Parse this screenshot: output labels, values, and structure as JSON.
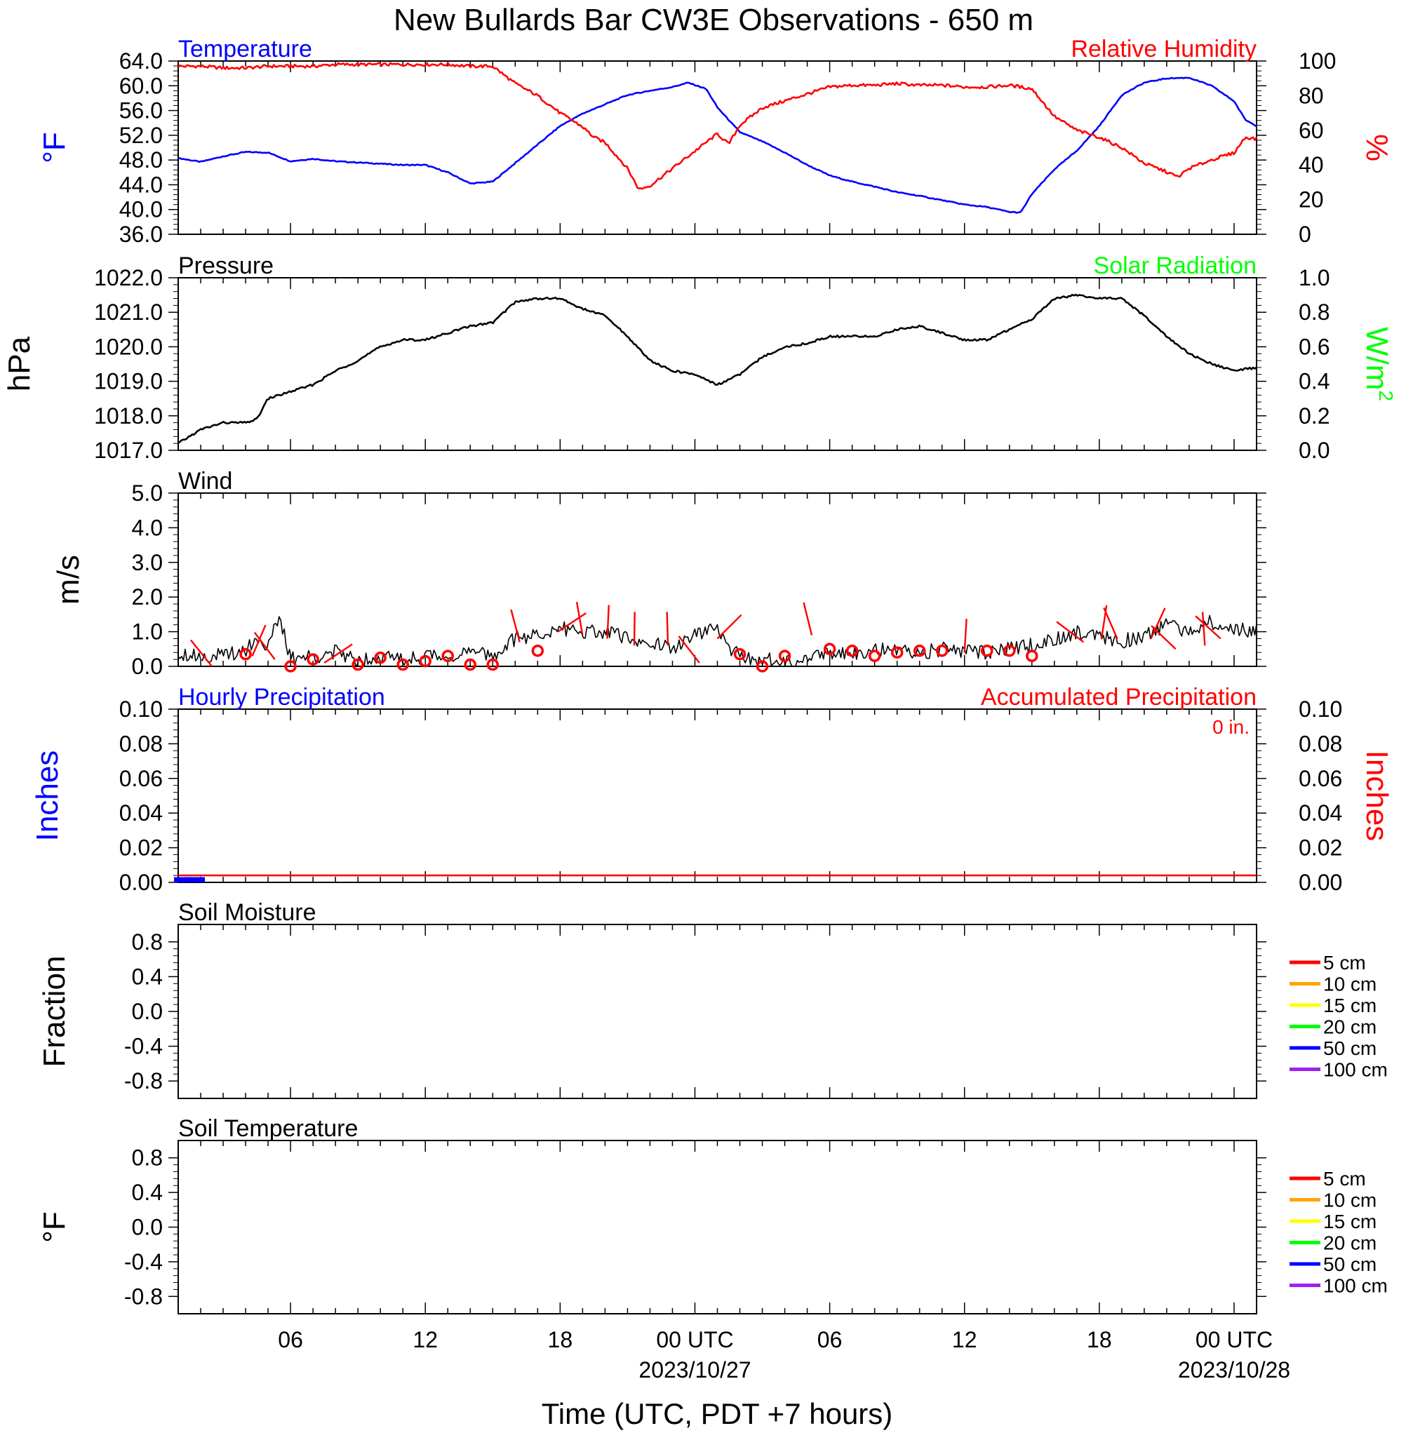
{
  "title": "New Bullards Bar CW3E Observations - 650 m",
  "colors": {
    "blue": "#0000ff",
    "red": "#ff0000",
    "green": "#00ff00",
    "black": "#000000"
  },
  "x_axis": {
    "label": "Time (UTC, PDT +7 hours)",
    "ticks": [
      {
        "hour": 6,
        "label": "06",
        "date": ""
      },
      {
        "hour": 12,
        "label": "12",
        "date": ""
      },
      {
        "hour": 18,
        "label": "18",
        "date": ""
      },
      {
        "hour": 24,
        "label": "00 UTC",
        "date": "2023/10/27"
      },
      {
        "hour": 30,
        "label": "06",
        "date": ""
      },
      {
        "hour": 36,
        "label": "12",
        "date": ""
      },
      {
        "hour": 42,
        "label": "18",
        "date": ""
      },
      {
        "hour": 48,
        "label": "00 UTC",
        "date": "2023/10/28"
      }
    ]
  },
  "chart_data": [
    {
      "id": "temp_rh",
      "type": "line",
      "left_title": "Temperature",
      "right_title": "Relative Humidity",
      "ylabel": "°F",
      "ylabel_right": "%",
      "ylim": [
        36,
        64
      ],
      "ylim_right": [
        0,
        100
      ],
      "yticks": [
        "64.0",
        "60.0",
        "56.0",
        "52.0",
        "48.0",
        "44.0",
        "40.0",
        "36.0"
      ],
      "yticks_right": [
        "100",
        "80",
        "60",
        "40",
        "20",
        "0"
      ],
      "xlim": [
        1,
        49
      ],
      "series": [
        {
          "name": "Temperature",
          "color": "#0000ff",
          "axis": "left",
          "x": [
            1,
            2,
            3,
            4,
            5,
            6,
            7,
            8,
            9,
            10,
            11,
            12,
            13,
            14,
            15,
            16,
            17,
            18,
            19,
            20,
            21,
            22,
            23,
            23.7,
            24.5,
            25,
            26,
            27,
            28,
            29,
            30,
            31,
            32,
            33,
            34,
            35,
            36,
            37,
            38,
            38.5,
            39,
            40,
            41,
            42,
            43,
            44,
            45,
            46,
            47,
            48,
            48.5,
            49
          ],
          "y": [
            48.3,
            47.7,
            48.6,
            49.3,
            49.2,
            47.8,
            48.2,
            47.8,
            47.6,
            47.4,
            47.2,
            47.2,
            46.0,
            44.2,
            44.5,
            47.5,
            50.5,
            53.5,
            55.5,
            57.0,
            58.5,
            59.2,
            59.8,
            60.5,
            59.5,
            56.5,
            52.5,
            51.0,
            49.2,
            47.2,
            45.5,
            44.5,
            43.7,
            42.8,
            42.2,
            41.5,
            40.8,
            40.4,
            39.6,
            39.5,
            42.5,
            46.5,
            49.5,
            53.5,
            58.5,
            60.5,
            61.2,
            61.3,
            60.0,
            57.5,
            54.5,
            53.5
          ]
        },
        {
          "name": "Relative Humidity",
          "color": "#ff0000",
          "axis": "right",
          "x": [
            1,
            2,
            3,
            4,
            5,
            6,
            7,
            8,
            9,
            10,
            11,
            12,
            13,
            14,
            15,
            15.5,
            16,
            17,
            18,
            19,
            19.5,
            20,
            21,
            21.5,
            22,
            23,
            24,
            25,
            25.5,
            26,
            27,
            28,
            29,
            30,
            31,
            32,
            33,
            34,
            35,
            36,
            37,
            38,
            38.5,
            39,
            40,
            41,
            42,
            43,
            44,
            45,
            45.5,
            46,
            47,
            48,
            48.5,
            49
          ],
          "y": [
            97,
            97,
            96,
            96,
            97,
            97,
            97,
            98,
            98,
            98,
            98,
            98,
            98,
            97,
            97,
            92,
            87,
            80,
            70,
            62,
            56,
            53,
            38,
            26,
            28,
            38,
            48,
            58,
            52,
            63,
            73,
            77,
            81,
            85,
            86,
            86,
            87,
            86,
            86,
            85,
            85,
            86,
            85,
            84,
            68,
            60,
            56,
            50,
            41,
            36,
            33,
            38,
            43,
            47,
            56,
            55
          ]
        }
      ]
    },
    {
      "id": "pressure",
      "type": "line",
      "left_title": "Pressure",
      "right_title": "Solar Radiation",
      "ylabel": "hPa",
      "ylabel_right": "W/m",
      "ylabel_right_sup": "2",
      "ylim": [
        1017,
        1022
      ],
      "ylim_right": [
        0,
        1
      ],
      "yticks": [
        "1022.0",
        "1021.0",
        "1020.0",
        "1019.0",
        "1018.0",
        "1017.0"
      ],
      "yticks_right": [
        "1.0",
        "0.8",
        "0.6",
        "0.4",
        "0.2",
        "0.0"
      ],
      "xlim": [
        1,
        49
      ],
      "series": [
        {
          "name": "Pressure",
          "color": "#000000",
          "axis": "left",
          "x": [
            1,
            2,
            3,
            4,
            4.5,
            5,
            6,
            7,
            8,
            9,
            10,
            11,
            12,
            13,
            14,
            15,
            16,
            17,
            18,
            19,
            20,
            21,
            22,
            23,
            24,
            25,
            26,
            27,
            28,
            29,
            30,
            31,
            32,
            33,
            34,
            35,
            36,
            37,
            38,
            39,
            40,
            41,
            42,
            43,
            44,
            45,
            46,
            47,
            48,
            49
          ],
          "y": [
            1017.2,
            1017.6,
            1017.8,
            1017.8,
            1017.9,
            1018.5,
            1018.7,
            1018.9,
            1019.3,
            1019.6,
            1020.0,
            1020.2,
            1020.2,
            1020.4,
            1020.6,
            1020.7,
            1021.3,
            1021.4,
            1021.4,
            1021.1,
            1020.9,
            1020.3,
            1019.6,
            1019.3,
            1019.2,
            1018.9,
            1019.2,
            1019.7,
            1020.0,
            1020.1,
            1020.3,
            1020.3,
            1020.3,
            1020.5,
            1020.6,
            1020.4,
            1020.2,
            1020.2,
            1020.5,
            1020.8,
            1021.4,
            1021.5,
            1021.4,
            1021.4,
            1020.9,
            1020.3,
            1019.8,
            1019.5,
            1019.3,
            1019.4
          ]
        }
      ]
    },
    {
      "id": "wind",
      "type": "line",
      "left_title": "Wind",
      "right_title": "",
      "ylabel": "m/s",
      "ylim": [
        0,
        5
      ],
      "yticks": [
        "5.0",
        "4.0",
        "3.0",
        "2.0",
        "1.0",
        "0.0"
      ],
      "xlim": [
        1,
        49
      ],
      "series": [
        {
          "name": "Wind",
          "color": "#000000",
          "axis": "left",
          "x": [
            1,
            2,
            3,
            4,
            4.5,
            5,
            5.5,
            6,
            7,
            8,
            9,
            10,
            11,
            12,
            13,
            14,
            15,
            16,
            17,
            18,
            19,
            20,
            21,
            22,
            23,
            24,
            25,
            25.5,
            26,
            27,
            28,
            29,
            30,
            31,
            32,
            33,
            34,
            35,
            36,
            37,
            38,
            39,
            40,
            41,
            42,
            43,
            44,
            45,
            46,
            47,
            48,
            49
          ],
          "y": [
            0.4,
            0.3,
            0.3,
            0.5,
            0.8,
            0.6,
            1.4,
            0.2,
            0.3,
            0.4,
            0.2,
            0.3,
            0.2,
            0.3,
            0.3,
            0.4,
            0.3,
            0.8,
            0.9,
            1.1,
            1.0,
            1.0,
            0.8,
            0.7,
            0.5,
            0.9,
            1.1,
            0.5,
            0.3,
            0.2,
            0.1,
            0.3,
            0.4,
            0.4,
            0.5,
            0.4,
            0.4,
            0.5,
            0.4,
            0.4,
            0.5,
            0.6,
            0.8,
            1.0,
            0.9,
            0.7,
            0.9,
            1.2,
            1.0,
            1.3,
            1.0,
            1.1
          ]
        }
      ],
      "barbs": {
        "calm_hours": [
          4,
          6,
          7,
          9,
          10,
          11,
          12,
          13,
          14,
          15,
          17,
          26,
          27,
          28,
          30,
          31,
          32,
          33,
          34,
          35,
          37,
          38,
          39
        ],
        "calm_speeds": [
          0.35,
          0.0,
          0.2,
          0.05,
          0.25,
          0.05,
          0.15,
          0.3,
          0.05,
          0.05,
          0.45,
          0.35,
          0.0,
          0.3,
          0.5,
          0.45,
          0.3,
          0.4,
          0.45,
          0.45,
          0.45,
          0.45,
          0.3
        ],
        "staff_hours": [
          2.5,
          4.3,
          5.3,
          7.5,
          16.2,
          17.9,
          19.0,
          20.1,
          21.3,
          22.8,
          24.2,
          25.0,
          29.2,
          36.0,
          41.3,
          42.1,
          42.8,
          44.3,
          45.4,
          46.7,
          47.4
        ],
        "staff_speeds": [
          0.0,
          0.3,
          0.2,
          0.1,
          0.7,
          1.0,
          0.9,
          0.8,
          0.6,
          0.6,
          0.1,
          0.8,
          0.9,
          0.4,
          0.7,
          0.8,
          0.8,
          0.8,
          0.5,
          0.6,
          0.8
        ],
        "color": "#ff0000"
      }
    },
    {
      "id": "precip",
      "type": "bar",
      "left_title": "Hourly Precipitation",
      "right_title": "Accumulated Precipitation",
      "annotation": "0 in.",
      "ylabel": "Inches",
      "ylabel_right": "Inches",
      "ylim": [
        0,
        0.1
      ],
      "ylim_right": [
        0,
        0.1
      ],
      "yticks": [
        "0.10",
        "0.08",
        "0.06",
        "0.04",
        "0.02",
        "0.00"
      ],
      "yticks_right": [
        "0.10",
        "0.08",
        "0.06",
        "0.04",
        "0.02",
        "0.00"
      ],
      "xlim": [
        1,
        49
      ],
      "series": [
        {
          "name": "Hourly Precipitation",
          "color": "#0000ff",
          "axis": "left",
          "x": [
            1.25,
            1.75
          ],
          "values": [
            0.003,
            0.003
          ]
        },
        {
          "name": "Accumulated Precipitation",
          "color": "#ff0000",
          "axis": "right",
          "x": [
            1,
            49
          ],
          "y": [
            0.004,
            0.004
          ]
        }
      ]
    },
    {
      "id": "soil_moisture",
      "type": "line",
      "left_title": "Soil Moisture",
      "right_title": "",
      "ylabel": "Fraction",
      "ylim": [
        -1,
        1
      ],
      "yticks": [
        "0.8",
        "0.4",
        "0.0",
        "-0.4",
        "-0.8"
      ],
      "ytick_values": [
        0.8,
        0.4,
        0.0,
        -0.4,
        -0.8
      ],
      "xlim": [
        1,
        49
      ],
      "legend": [
        {
          "name": "5 cm",
          "color": "#ff0000"
        },
        {
          "name": "10 cm",
          "color": "#ffa500"
        },
        {
          "name": "15 cm",
          "color": "#ffff00"
        },
        {
          "name": "20 cm",
          "color": "#00ff00"
        },
        {
          "name": "50 cm",
          "color": "#0000ff"
        },
        {
          "name": "100 cm",
          "color": "#a020f0"
        }
      ],
      "series": []
    },
    {
      "id": "soil_temperature",
      "type": "line",
      "left_title": "Soil Temperature",
      "right_title": "",
      "ylabel": "°F",
      "ylim": [
        -1,
        1
      ],
      "yticks": [
        "0.8",
        "0.4",
        "0.0",
        "-0.4",
        "-0.8"
      ],
      "ytick_values": [
        0.8,
        0.4,
        0.0,
        -0.4,
        -0.8
      ],
      "xlim": [
        1,
        49
      ],
      "legend": [
        {
          "name": "5 cm",
          "color": "#ff0000"
        },
        {
          "name": "10 cm",
          "color": "#ffa500"
        },
        {
          "name": "15 cm",
          "color": "#ffff00"
        },
        {
          "name": "20 cm",
          "color": "#00ff00"
        },
        {
          "name": "50 cm",
          "color": "#0000ff"
        },
        {
          "name": "100 cm",
          "color": "#a020f0"
        }
      ],
      "series": []
    }
  ]
}
